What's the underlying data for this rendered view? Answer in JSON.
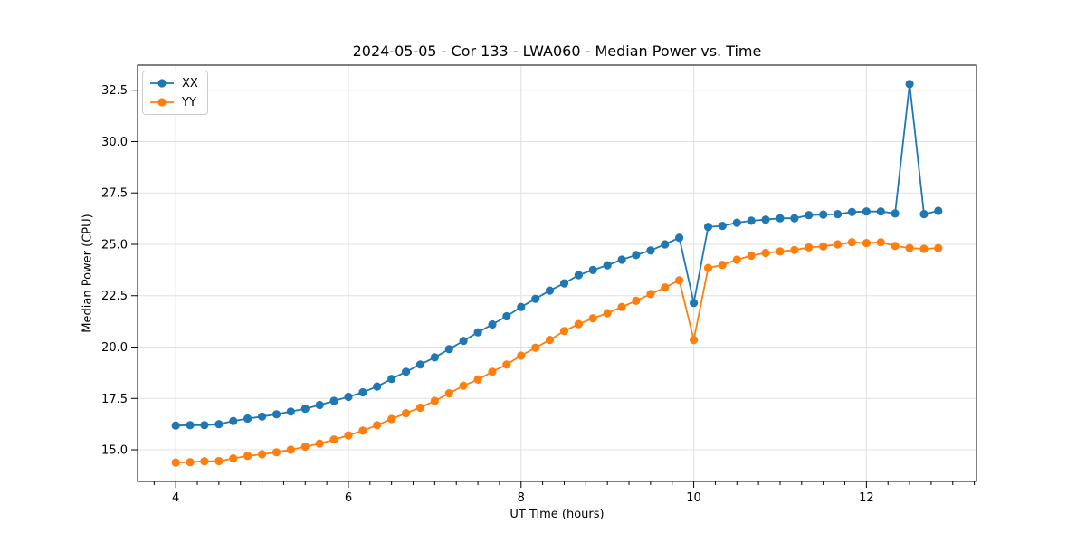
{
  "chart_data": {
    "type": "line",
    "title": "2024-05-05 - Cor 133 - LWA060 - Median Power vs. Time",
    "xlabel": "UT Time (hours)",
    "ylabel": "Median Power (CPU)",
    "xlim": [
      3.558,
      13.275
    ],
    "ylim": [
      13.46,
      33.72
    ],
    "xticks": [
      4,
      6,
      8,
      10,
      12
    ],
    "xtick_labels": [
      "4",
      "6",
      "8",
      "10",
      "12"
    ],
    "x_minor_ticks": [
      3.75,
      4.25,
      4.5,
      4.75,
      5.0,
      5.25,
      5.5,
      5.75,
      6.25,
      6.5,
      6.75,
      7.0,
      7.25,
      7.5,
      7.75,
      8.25,
      8.5,
      8.75,
      9.0,
      9.25,
      9.5,
      9.75,
      10.25,
      10.5,
      10.75,
      11.0,
      11.25,
      11.5,
      11.75,
      12.25,
      12.5,
      12.75,
      13.0,
      13.25
    ],
    "yticks": [
      15.0,
      17.5,
      20.0,
      22.5,
      25.0,
      27.5,
      30.0,
      32.5
    ],
    "ytick_labels": [
      "15.0",
      "17.5",
      "20.0",
      "22.5",
      "25.0",
      "27.5",
      "30.0",
      "32.5"
    ],
    "grid": true,
    "grid_color": "#e0e0e0",
    "legend_position": "upper left",
    "x": [
      4.0,
      4.167,
      4.333,
      4.5,
      4.667,
      4.833,
      5.0,
      5.167,
      5.333,
      5.5,
      5.667,
      5.833,
      6.0,
      6.167,
      6.333,
      6.5,
      6.667,
      6.833,
      7.0,
      7.167,
      7.333,
      7.5,
      7.667,
      7.833,
      8.0,
      8.167,
      8.333,
      8.5,
      8.667,
      8.833,
      9.0,
      9.167,
      9.333,
      9.5,
      9.667,
      9.833,
      10.0,
      10.167,
      10.333,
      10.5,
      10.667,
      10.833,
      11.0,
      11.167,
      11.333,
      11.5,
      11.667,
      11.833,
      12.0,
      12.167,
      12.333,
      12.5,
      12.667,
      12.833
    ],
    "series": [
      {
        "name": "XX",
        "color": "#1f77b4",
        "values": [
          16.18,
          16.2,
          16.2,
          16.25,
          16.4,
          16.52,
          16.62,
          16.73,
          16.86,
          17.0,
          17.18,
          17.38,
          17.58,
          17.8,
          18.08,
          18.45,
          18.8,
          19.15,
          19.5,
          19.9,
          20.3,
          20.72,
          21.1,
          21.5,
          21.95,
          22.35,
          22.75,
          23.1,
          23.5,
          23.75,
          23.98,
          24.25,
          24.48,
          24.7,
          25.0,
          25.32,
          22.15,
          25.85,
          25.9,
          26.05,
          26.15,
          26.2,
          26.27,
          26.27,
          26.42,
          26.45,
          26.47,
          26.57,
          26.6,
          26.6,
          26.5,
          32.8,
          26.47,
          26.63
        ]
      },
      {
        "name": "YY",
        "color": "#ff7f0e",
        "values": [
          14.38,
          14.4,
          14.44,
          14.45,
          14.58,
          14.7,
          14.78,
          14.88,
          15.0,
          15.15,
          15.3,
          15.5,
          15.7,
          15.93,
          16.2,
          16.5,
          16.78,
          17.05,
          17.38,
          17.75,
          18.12,
          18.42,
          18.8,
          19.15,
          19.58,
          19.97,
          20.35,
          20.78,
          21.12,
          21.4,
          21.65,
          21.95,
          22.25,
          22.58,
          22.9,
          23.25,
          20.35,
          23.85,
          24.0,
          24.25,
          24.45,
          24.58,
          24.65,
          24.72,
          24.85,
          24.9,
          25.0,
          25.1,
          25.06,
          25.1,
          24.92,
          24.82,
          24.78,
          24.82
        ]
      }
    ]
  }
}
